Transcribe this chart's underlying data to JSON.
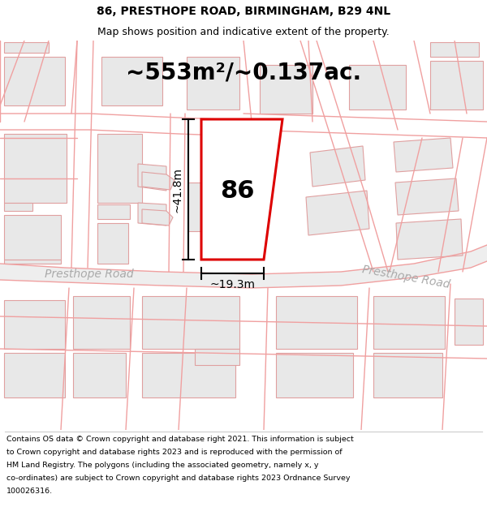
{
  "title_line1": "86, PRESTHOPE ROAD, BIRMINGHAM, B29 4NL",
  "title_line2": "Map shows position and indicative extent of the property.",
  "area_text": "~553m²/~0.137ac.",
  "property_number": "86",
  "dim_height": "~41.8m",
  "dim_width": "~19.3m",
  "road_label_left": "Presthope Road",
  "road_label_right": "Presthope Road",
  "footer_text": "Contains OS data © Crown copyright and database right 2021. This information is subject to Crown copyright and database rights 2023 and is reproduced with the permission of HM Land Registry. The polygons (including the associated geometry, namely x, y co-ordinates) are subject to Crown copyright and database rights 2023 Ordnance Survey 100026316.",
  "bg_color": "#ffffff",
  "road_color": "#f0a0a0",
  "building_fill": "#e8e8e8",
  "building_edge": "#e0a0a0",
  "road_band_color": "#e8e8e8",
  "subject_fill": "#ffffff",
  "subject_edge": "#dd0000",
  "dim_line_color": "#000000",
  "text_color": "#000000",
  "road_text_color": "#aaaaaa",
  "title_fontsize": 10,
  "subtitle_fontsize": 9,
  "area_fontsize": 20,
  "number_fontsize": 22,
  "dim_fontsize": 10,
  "road_fontsize": 10,
  "footer_fontsize": 6.8
}
